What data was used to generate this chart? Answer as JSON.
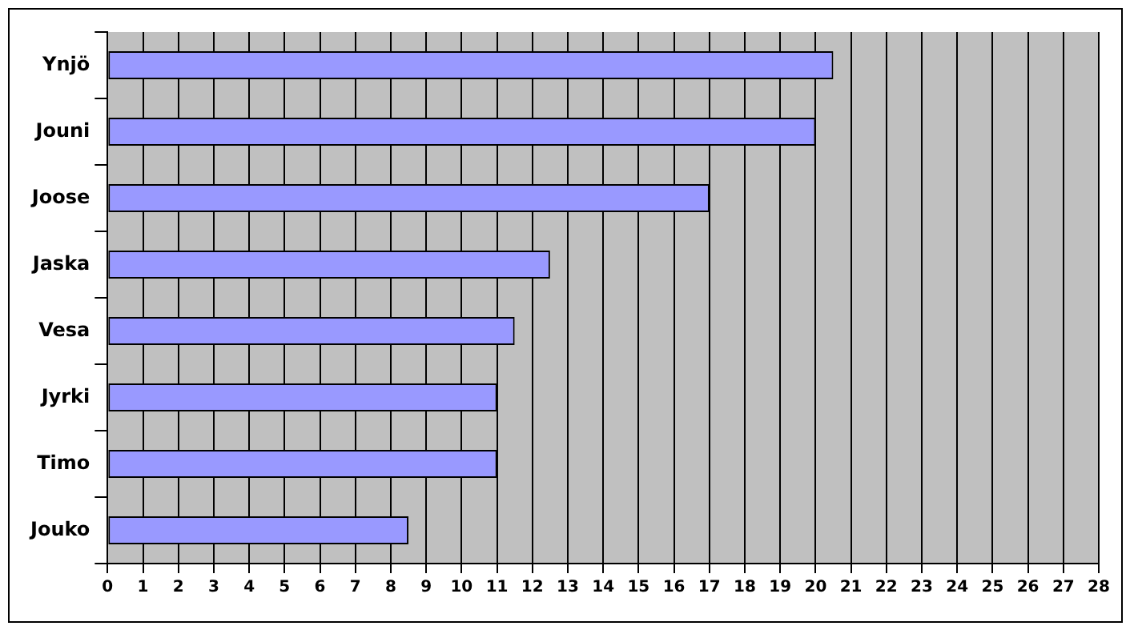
{
  "chart_data": {
    "type": "bar",
    "orientation": "horizontal",
    "categories": [
      "Ynjö",
      "Jouni",
      "Joose",
      "Jaska",
      "Vesa",
      "Jyrki",
      "Timo",
      "Jouko"
    ],
    "values": [
      20.5,
      20,
      17,
      12.5,
      11.5,
      11,
      11,
      8.5
    ],
    "color": "#9999ff",
    "xlim": [
      0,
      28
    ],
    "xticks": [
      0,
      1,
      2,
      3,
      4,
      5,
      6,
      7,
      8,
      9,
      10,
      11,
      12,
      13,
      14,
      15,
      16,
      17,
      18,
      19,
      20,
      21,
      22,
      23,
      24,
      25,
      26,
      27,
      28
    ],
    "grid": "x",
    "legend": false
  }
}
